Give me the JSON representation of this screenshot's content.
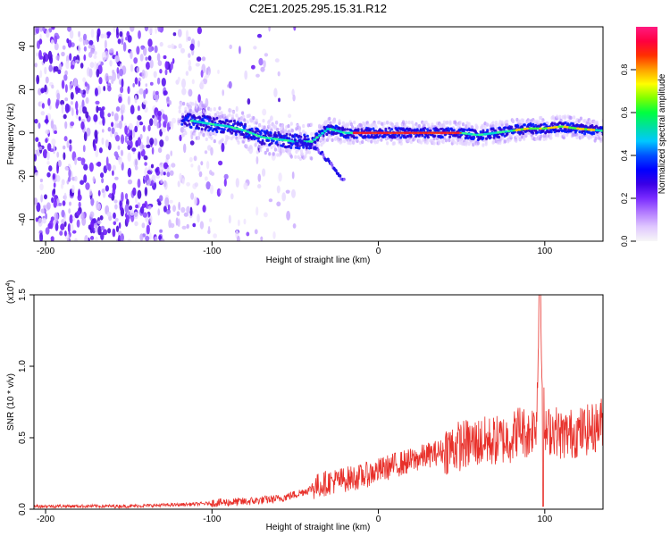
{
  "figure_title": "C2E1.2025.295.15.31.R12",
  "colors": {
    "snr_line": "#e8302a",
    "ridge": "#ee1c24",
    "axis": "#000000",
    "colormap": [
      "#f7f7f7",
      "#e0c8ff",
      "#b37cff",
      "#7a2bff",
      "#3a00e6",
      "#0000ff",
      "#0050ff",
      "#00c8ff",
      "#00e0a0",
      "#00ff40",
      "#80ff00",
      "#ffff00",
      "#ffa000",
      "#ff3000",
      "#ff0040",
      "#ff1a80"
    ]
  },
  "chart_data": [
    {
      "type": "heatmap",
      "title": "",
      "xlabel": "Height of straight line (km)",
      "ylabel": "Frequency (Hz)",
      "xlim": [
        -207,
        135
      ],
      "ylim": [
        -50,
        49
      ],
      "x_ticks": [
        -200,
        -100,
        0,
        100
      ],
      "y_ticks": [
        -40,
        -20,
        0,
        20,
        40
      ],
      "x_tick_labels": [
        "-200",
        "-100",
        "0",
        "100"
      ],
      "y_tick_labels": [
        "-40",
        "-20",
        "0",
        "20",
        "40"
      ],
      "colorbar": {
        "label": "Normalized spectral amplitude",
        "range": [
          0,
          1
        ],
        "ticks": [
          0.0,
          0.2,
          0.4,
          0.6,
          0.8
        ],
        "tick_labels": [
          "0.0",
          "0.2",
          "0.4",
          "0.6",
          "0.8"
        ]
      },
      "ridge": {
        "description_x": [
          -115,
          -100,
          -90,
          -80,
          -70,
          -60,
          -50,
          -40,
          -30,
          -20,
          -10,
          0,
          20,
          40,
          50,
          60,
          70,
          80,
          90,
          100,
          110,
          120,
          135
        ],
        "frequency_hz": [
          6,
          4,
          3,
          1,
          -2,
          -3,
          -4,
          -4,
          2,
          0,
          0,
          0,
          0,
          0,
          0,
          -1,
          0,
          1,
          2,
          2,
          3,
          2,
          1
        ],
        "branch_x": [
          -50,
          -40,
          -35,
          -30,
          -25,
          -20
        ],
        "branch_frequency_hz": [
          -4,
          -6,
          -9,
          -13,
          -18,
          -23
        ],
        "noise_region_x": [
          -207,
          -50
        ]
      }
    },
    {
      "type": "line",
      "title": "",
      "xlabel": "Height of straight line (km)",
      "ylabel": "SNR (10 * v/v)",
      "scale_label": "(x10",
      "scale_exp": "4",
      "scale_close": ")",
      "xlim": [
        -207,
        135
      ],
      "ylim": [
        0,
        1.5
      ],
      "x_ticks": [
        -200,
        -100,
        0,
        100
      ],
      "y_ticks": [
        0.0,
        0.5,
        1.0,
        1.5
      ],
      "x_tick_labels": [
        "-200",
        "-100",
        "0",
        "100"
      ],
      "y_tick_labels": [
        "0.0",
        "0.5",
        "1.0",
        "1.5"
      ],
      "series": [
        {
          "x": [
            -207,
            -180,
            -150,
            -120,
            -100,
            -80,
            -60,
            -50,
            -40,
            -30,
            -20,
            -10,
            0,
            10,
            20,
            30,
            40,
            50,
            60,
            70,
            80,
            85,
            90,
            95,
            97,
            100,
            105,
            110,
            120,
            130,
            135
          ],
          "y": [
            0.02,
            0.02,
            0.02,
            0.03,
            0.04,
            0.05,
            0.07,
            0.1,
            0.14,
            0.18,
            0.2,
            0.22,
            0.26,
            0.3,
            0.33,
            0.37,
            0.4,
            0.43,
            0.45,
            0.46,
            0.48,
            0.55,
            0.5,
            0.6,
            1.5,
            0.5,
            0.55,
            0.5,
            0.52,
            0.55,
            0.6
          ]
        }
      ]
    }
  ]
}
